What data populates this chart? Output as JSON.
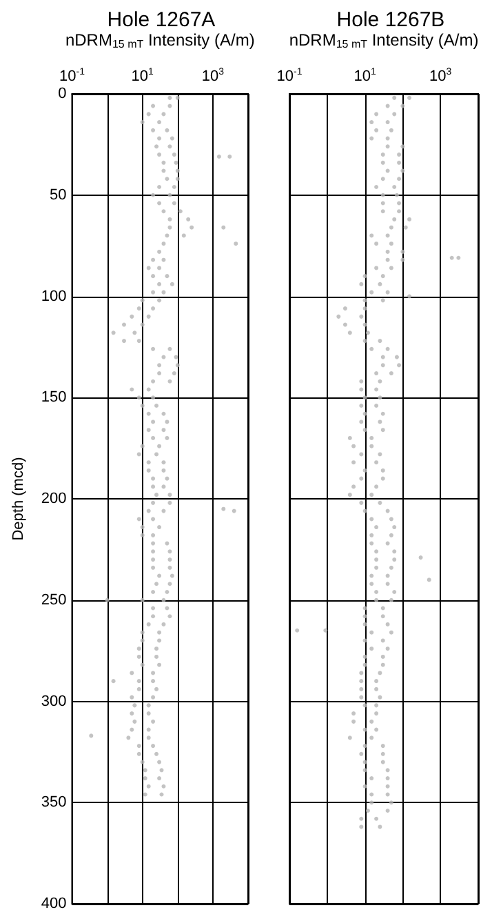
{
  "chart_data": [
    {
      "type": "scatter",
      "title": "Hole 1267A",
      "xlabel": "nDRM$_{15 mT}$ Intensity (A/m)",
      "ylabel": "Depth (mcd)",
      "log": "x",
      "xlim": [
        0.1,
        10000
      ],
      "xticks": [
        {
          "value": 0.1,
          "label": "10$^{-1}$"
        },
        {
          "value": 1,
          "label": null
        },
        {
          "value": 10,
          "label": "10$^{1}$"
        },
        {
          "value": 100,
          "label": null
        },
        {
          "value": 1000,
          "label": "10$^{3}$"
        },
        {
          "value": 10000,
          "label": null
        }
      ],
      "ylim": [
        400,
        0
      ],
      "yticks": [
        0,
        50,
        100,
        150,
        200,
        250,
        300,
        350,
        400
      ],
      "grid": true,
      "marker": "circle",
      "series": [
        {
          "color": "#b4b4b4",
          "x": [
            60,
            100,
            20,
            60,
            15,
            40,
            10,
            30,
            20,
            50,
            30,
            70,
            25,
            60,
            30,
            80,
            40,
            90,
            40,
            100,
            50,
            100,
            30,
            80,
            20,
            60,
            30,
            80,
            40,
            120,
            60,
            200,
            60,
            250,
            50,
            150,
            40,
            30,
            20,
            40,
            15,
            30,
            20,
            50,
            30,
            70,
            20,
            40,
            10,
            30,
            8,
            20,
            5,
            15,
            3,
            10,
            1.5,
            6,
            3,
            8,
            20,
            60,
            40,
            90,
            30,
            100,
            30,
            80,
            20,
            60,
            5,
            15,
            8,
            20,
            10,
            25,
            15,
            40,
            20,
            50,
            15,
            40,
            20,
            50,
            10,
            30,
            8,
            25,
            15,
            40,
            15,
            40,
            20,
            50,
            20,
            40,
            25,
            60,
            20,
            60,
            15,
            40,
            8,
            20,
            10,
            30,
            10,
            20,
            20,
            50,
            20,
            60,
            20,
            60,
            20,
            60,
            30,
            70,
            25,
            60,
            20,
            50,
            10,
            40,
            20,
            50,
            20,
            60,
            15,
            40,
            10,
            30,
            10,
            30,
            8,
            25,
            8,
            25,
            10,
            30,
            5,
            20,
            8,
            20,
            8,
            25,
            5,
            20,
            6,
            15,
            5,
            15,
            6,
            20,
            5,
            15,
            4,
            15,
            8,
            20,
            8,
            25,
            10,
            30,
            12,
            35,
            12,
            30,
            15,
            40,
            12,
            35,
            1500,
            3000,
            2000,
            4500,
            2000,
            4000,
            0.35,
            1,
            1.5
          ],
          "values": [
            2,
            2,
            6,
            6,
            10,
            10,
            14,
            14,
            18,
            18,
            22,
            22,
            26,
            26,
            30,
            30,
            34,
            34,
            38,
            38,
            42,
            42,
            46,
            46,
            50,
            50,
            54,
            54,
            58,
            58,
            62,
            62,
            66,
            66,
            70,
            70,
            74,
            78,
            82,
            82,
            86,
            86,
            90,
            90,
            94,
            94,
            98,
            98,
            102,
            102,
            106,
            106,
            110,
            110,
            114,
            114,
            118,
            118,
            122,
            122,
            126,
            126,
            130,
            130,
            134,
            134,
            138,
            138,
            142,
            142,
            146,
            146,
            150,
            150,
            154,
            154,
            158,
            158,
            162,
            162,
            166,
            166,
            170,
            170,
            174,
            174,
            178,
            178,
            182,
            182,
            186,
            186,
            190,
            190,
            194,
            194,
            198,
            198,
            202,
            202,
            206,
            206,
            210,
            210,
            214,
            214,
            218,
            218,
            222,
            222,
            226,
            226,
            230,
            230,
            234,
            234,
            238,
            238,
            242,
            242,
            246,
            246,
            250,
            250,
            254,
            254,
            258,
            258,
            262,
            262,
            266,
            266,
            270,
            270,
            274,
            274,
            278,
            278,
            282,
            282,
            286,
            286,
            290,
            290,
            294,
            294,
            298,
            298,
            302,
            302,
            306,
            306,
            310,
            310,
            314,
            314,
            318,
            318,
            322,
            322,
            326,
            326,
            330,
            330,
            334,
            334,
            338,
            338,
            342,
            342,
            346,
            346,
            31,
            31,
            66,
            74,
            205,
            206,
            317,
            250,
            290
          ]
        }
      ]
    },
    {
      "type": "scatter",
      "title": "Hole 1267B",
      "xlabel": "nDRM$_{15 mT}$ Intensity (A/m)",
      "log": "x",
      "xlim": [
        0.1,
        10000
      ],
      "xticks": [
        {
          "value": 0.1,
          "label": "10$^{-1}$"
        },
        {
          "value": 1,
          "label": null
        },
        {
          "value": 10,
          "label": "10$^{1}$"
        },
        {
          "value": 100,
          "label": null
        },
        {
          "value": 1000,
          "label": "10$^{3}$"
        },
        {
          "value": 10000,
          "label": null
        }
      ],
      "ylim": [
        400,
        0
      ],
      "yticks": [
        0,
        50,
        100,
        150,
        200,
        250,
        300,
        350,
        400
      ],
      "tick_labels": "x",
      "grid": true,
      "marker": "circle",
      "series": [
        {
          "color": "#b4b4b4",
          "x": [
            60,
            150,
            40,
            100,
            20,
            60,
            15,
            40,
            20,
            50,
            15,
            40,
            40,
            100,
            30,
            80,
            30,
            80,
            40,
            100,
            30,
            80,
            20,
            60,
            30,
            70,
            30,
            80,
            30,
            80,
            60,
            150,
            50,
            120,
            15,
            40,
            20,
            50,
            40,
            100,
            40,
            100,
            20,
            50,
            10,
            30,
            8,
            25,
            15,
            40,
            10,
            30,
            3,
            10,
            2,
            8,
            3,
            10,
            4,
            12,
            10,
            25,
            15,
            40,
            30,
            70,
            30,
            80,
            20,
            50,
            8,
            25,
            8,
            20,
            10,
            25,
            8,
            20,
            10,
            30,
            8,
            25,
            10,
            30,
            4,
            15,
            5,
            15,
            8,
            25,
            5,
            20,
            10,
            30,
            8,
            30,
            5,
            20,
            4,
            15,
            8,
            25,
            10,
            40,
            15,
            50,
            20,
            60,
            15,
            50,
            15,
            40,
            20,
            60,
            20,
            60,
            20,
            50,
            15,
            40,
            15,
            40,
            20,
            60,
            20,
            50,
            10,
            30,
            10,
            30,
            10,
            40,
            15,
            50,
            10,
            30,
            15,
            40,
            10,
            30,
            10,
            30,
            8,
            25,
            8,
            20,
            8,
            20,
            8,
            25,
            10,
            20,
            5,
            20,
            5,
            15,
            10,
            20,
            4,
            15,
            10,
            30,
            8,
            30,
            10,
            30,
            10,
            40,
            15,
            40,
            10,
            40,
            15,
            40,
            15,
            50,
            12,
            40,
            8,
            20,
            8,
            25,
            2000,
            3000,
            0.16,
            0.9,
            150,
            300,
            500
          ],
          "values": [
            2,
            2,
            6,
            6,
            10,
            10,
            14,
            14,
            18,
            18,
            22,
            22,
            26,
            26,
            30,
            30,
            34,
            34,
            38,
            38,
            42,
            42,
            46,
            46,
            50,
            50,
            54,
            54,
            58,
            58,
            62,
            62,
            66,
            66,
            70,
            70,
            74,
            74,
            78,
            78,
            82,
            82,
            86,
            86,
            90,
            90,
            94,
            94,
            98,
            98,
            102,
            102,
            106,
            106,
            110,
            110,
            114,
            114,
            118,
            118,
            122,
            122,
            126,
            126,
            130,
            130,
            134,
            134,
            138,
            138,
            142,
            142,
            146,
            146,
            150,
            150,
            154,
            154,
            158,
            158,
            162,
            162,
            166,
            166,
            170,
            170,
            174,
            174,
            178,
            178,
            182,
            182,
            186,
            186,
            190,
            190,
            194,
            194,
            198,
            198,
            202,
            202,
            206,
            206,
            210,
            210,
            214,
            214,
            218,
            218,
            222,
            222,
            226,
            226,
            230,
            230,
            234,
            234,
            238,
            238,
            242,
            242,
            246,
            246,
            250,
            250,
            254,
            254,
            258,
            258,
            262,
            262,
            266,
            266,
            270,
            270,
            274,
            274,
            278,
            278,
            282,
            282,
            286,
            286,
            290,
            290,
            294,
            294,
            298,
            298,
            302,
            302,
            306,
            306,
            310,
            310,
            314,
            314,
            318,
            318,
            322,
            322,
            326,
            326,
            330,
            330,
            334,
            334,
            338,
            338,
            342,
            342,
            346,
            346,
            350,
            350,
            354,
            354,
            358,
            358,
            362,
            362,
            81,
            81,
            265,
            265,
            100,
            229,
            240
          ]
        }
      ]
    }
  ]
}
